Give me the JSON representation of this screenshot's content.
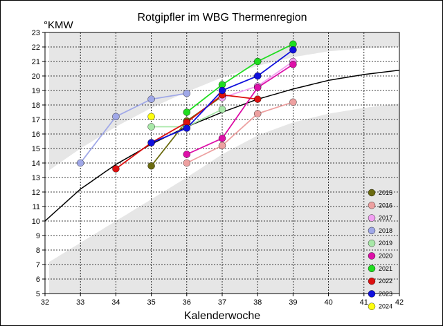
{
  "chart_data": {
    "type": "line",
    "title": "Rotgipfler im WBG Thermenregion",
    "xlabel": "Kalenderwoche",
    "ylabel": "°KMW",
    "xlim": [
      32,
      42
    ],
    "ylim": [
      5,
      23
    ],
    "x_ticks": [
      32,
      33,
      34,
      35,
      36,
      37,
      38,
      39,
      40,
      41,
      42
    ],
    "y_ticks": [
      5,
      6,
      7,
      8,
      9,
      10,
      11,
      12,
      13,
      14,
      15,
      16,
      17,
      18,
      19,
      20,
      21,
      22,
      23
    ],
    "grid": true,
    "legend_position": "bottom-right",
    "reference_curve": {
      "x": [
        32,
        33,
        34,
        35,
        36,
        37,
        38,
        39,
        40,
        41,
        42
      ],
      "y": [
        10.0,
        12.2,
        13.9,
        15.3,
        16.5,
        17.5,
        18.4,
        19.1,
        19.7,
        20.1,
        20.4
      ]
    },
    "band_upper": {
      "x": [
        32,
        33,
        34,
        35,
        36,
        37,
        38,
        39,
        40,
        41,
        42
      ],
      "y": [
        13.3,
        15.0,
        16.5,
        17.8,
        18.9,
        19.9,
        20.7,
        21.3,
        21.7,
        21.9,
        22.0
      ]
    },
    "band_lower": {
      "x": [
        32,
        33,
        34,
        35,
        36,
        37,
        38,
        39,
        40,
        41,
        42
      ],
      "y": [
        7.0,
        8.5,
        10.0,
        11.5,
        13.0,
        14.6,
        15.9,
        16.8,
        17.4,
        17.8,
        18.1
      ]
    },
    "series": [
      {
        "name": "2015",
        "color": "#6b6b10",
        "x": [
          35,
          36,
          37
        ],
        "y": [
          13.8,
          16.9,
          18.6
        ]
      },
      {
        "name": "2016",
        "color": "#eda0a0",
        "x": [
          36,
          37,
          38,
          39
        ],
        "y": [
          14.0,
          15.2,
          17.4,
          18.2
        ]
      },
      {
        "name": "2017",
        "color": "#f2a0f2",
        "x": [
          37,
          38,
          39
        ],
        "y": [
          18.5,
          19.3,
          21.0
        ]
      },
      {
        "name": "2018",
        "color": "#a0a8e8",
        "x": [
          33,
          34,
          35,
          36
        ],
        "y": [
          14.0,
          17.2,
          18.4,
          18.8
        ]
      },
      {
        "name": "2019",
        "color": "#a8e8a8",
        "x": [
          35,
          36,
          37
        ],
        "y": [
          16.5,
          16.5,
          17.7
        ]
      },
      {
        "name": "2020",
        "color": "#dd10a8",
        "x": [
          36,
          37,
          38,
          39
        ],
        "y": [
          14.6,
          15.7,
          19.2,
          20.8
        ]
      },
      {
        "name": "2021",
        "color": "#20dd20",
        "x": [
          36,
          37,
          38,
          39
        ],
        "y": [
          17.5,
          19.4,
          21.0,
          22.2
        ]
      },
      {
        "name": "2022",
        "color": "#dd1010",
        "x": [
          34,
          35,
          36,
          37,
          38
        ],
        "y": [
          13.6,
          15.4,
          16.8,
          18.7,
          18.4
        ]
      },
      {
        "name": "2023",
        "color": "#1010dd",
        "x": [
          35,
          36,
          37,
          38,
          39
        ],
        "y": [
          15.4,
          16.4,
          19.0,
          20.0,
          21.8
        ]
      },
      {
        "name": "2024",
        "color": "#ffff10",
        "x": [
          35
        ],
        "y": [
          17.2
        ]
      }
    ]
  }
}
